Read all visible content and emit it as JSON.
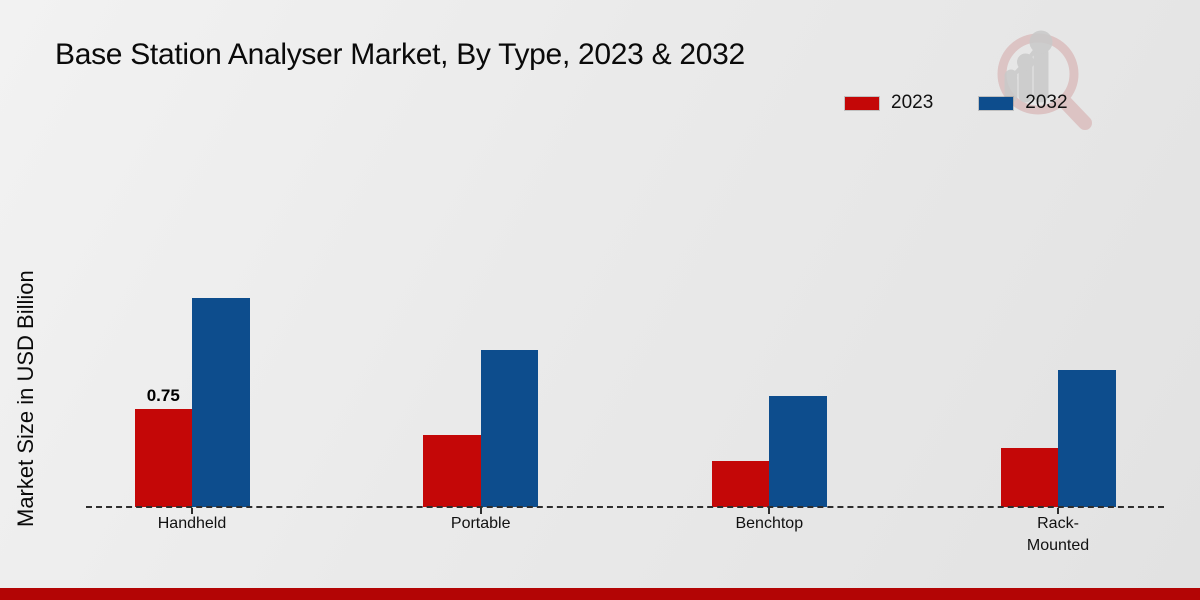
{
  "footer": {
    "color": "#b30505"
  },
  "logo_icon": "magnifier-growth-chart-icon",
  "chart_data": {
    "type": "bar",
    "title": "Base Station Analyser Market, By Type, 2023 & 2032",
    "xlabel": "",
    "ylabel": "Market Size in USD Billion",
    "categories": [
      "Handheld",
      "Portable",
      "Benchtop",
      "Rack-Mounted"
    ],
    "series": [
      {
        "name": "2023",
        "color": "#c40707",
        "values": [
          0.75,
          0.55,
          0.35,
          0.45
        ]
      },
      {
        "name": "2032",
        "color": "#0d4d8d",
        "values": [
          1.6,
          1.2,
          0.85,
          1.05
        ]
      }
    ],
    "ylim": [
      0,
      2
    ],
    "grid": false,
    "axis_style": "dashed-baseline-only",
    "legend_position": "top-right",
    "data_labels": [
      {
        "series": "2023",
        "category": "Handheld",
        "text": "0.75"
      }
    ]
  }
}
